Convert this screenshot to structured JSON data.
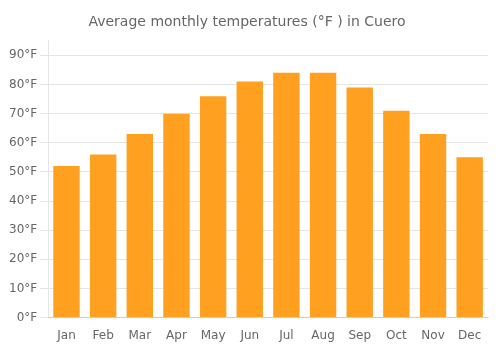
{
  "chart_data": {
    "type": "bar",
    "title": "Average monthly temperatures (°F ) in Cuero",
    "categories": [
      "Jan",
      "Feb",
      "Mar",
      "Apr",
      "May",
      "Jun",
      "Jul",
      "Aug",
      "Sep",
      "Oct",
      "Nov",
      "Dec"
    ],
    "values": [
      52,
      56,
      63,
      70,
      76,
      81,
      84,
      84,
      79,
      71,
      63,
      55
    ],
    "color": "#FFA020",
    "ylim": [
      0,
      95
    ],
    "yticks": [
      {
        "value": 0,
        "label": "0°F"
      },
      {
        "value": 10,
        "label": "10°F"
      },
      {
        "value": 20,
        "label": "20°F"
      },
      {
        "value": 30,
        "label": "30°F"
      },
      {
        "value": 40,
        "label": "40°F"
      },
      {
        "value": 50,
        "label": "50°F"
      },
      {
        "value": 60,
        "label": "60°F"
      },
      {
        "value": 70,
        "label": "70°F"
      },
      {
        "value": 80,
        "label": "80°F"
      },
      {
        "value": 90,
        "label": "90°F"
      }
    ],
    "grid": true
  }
}
